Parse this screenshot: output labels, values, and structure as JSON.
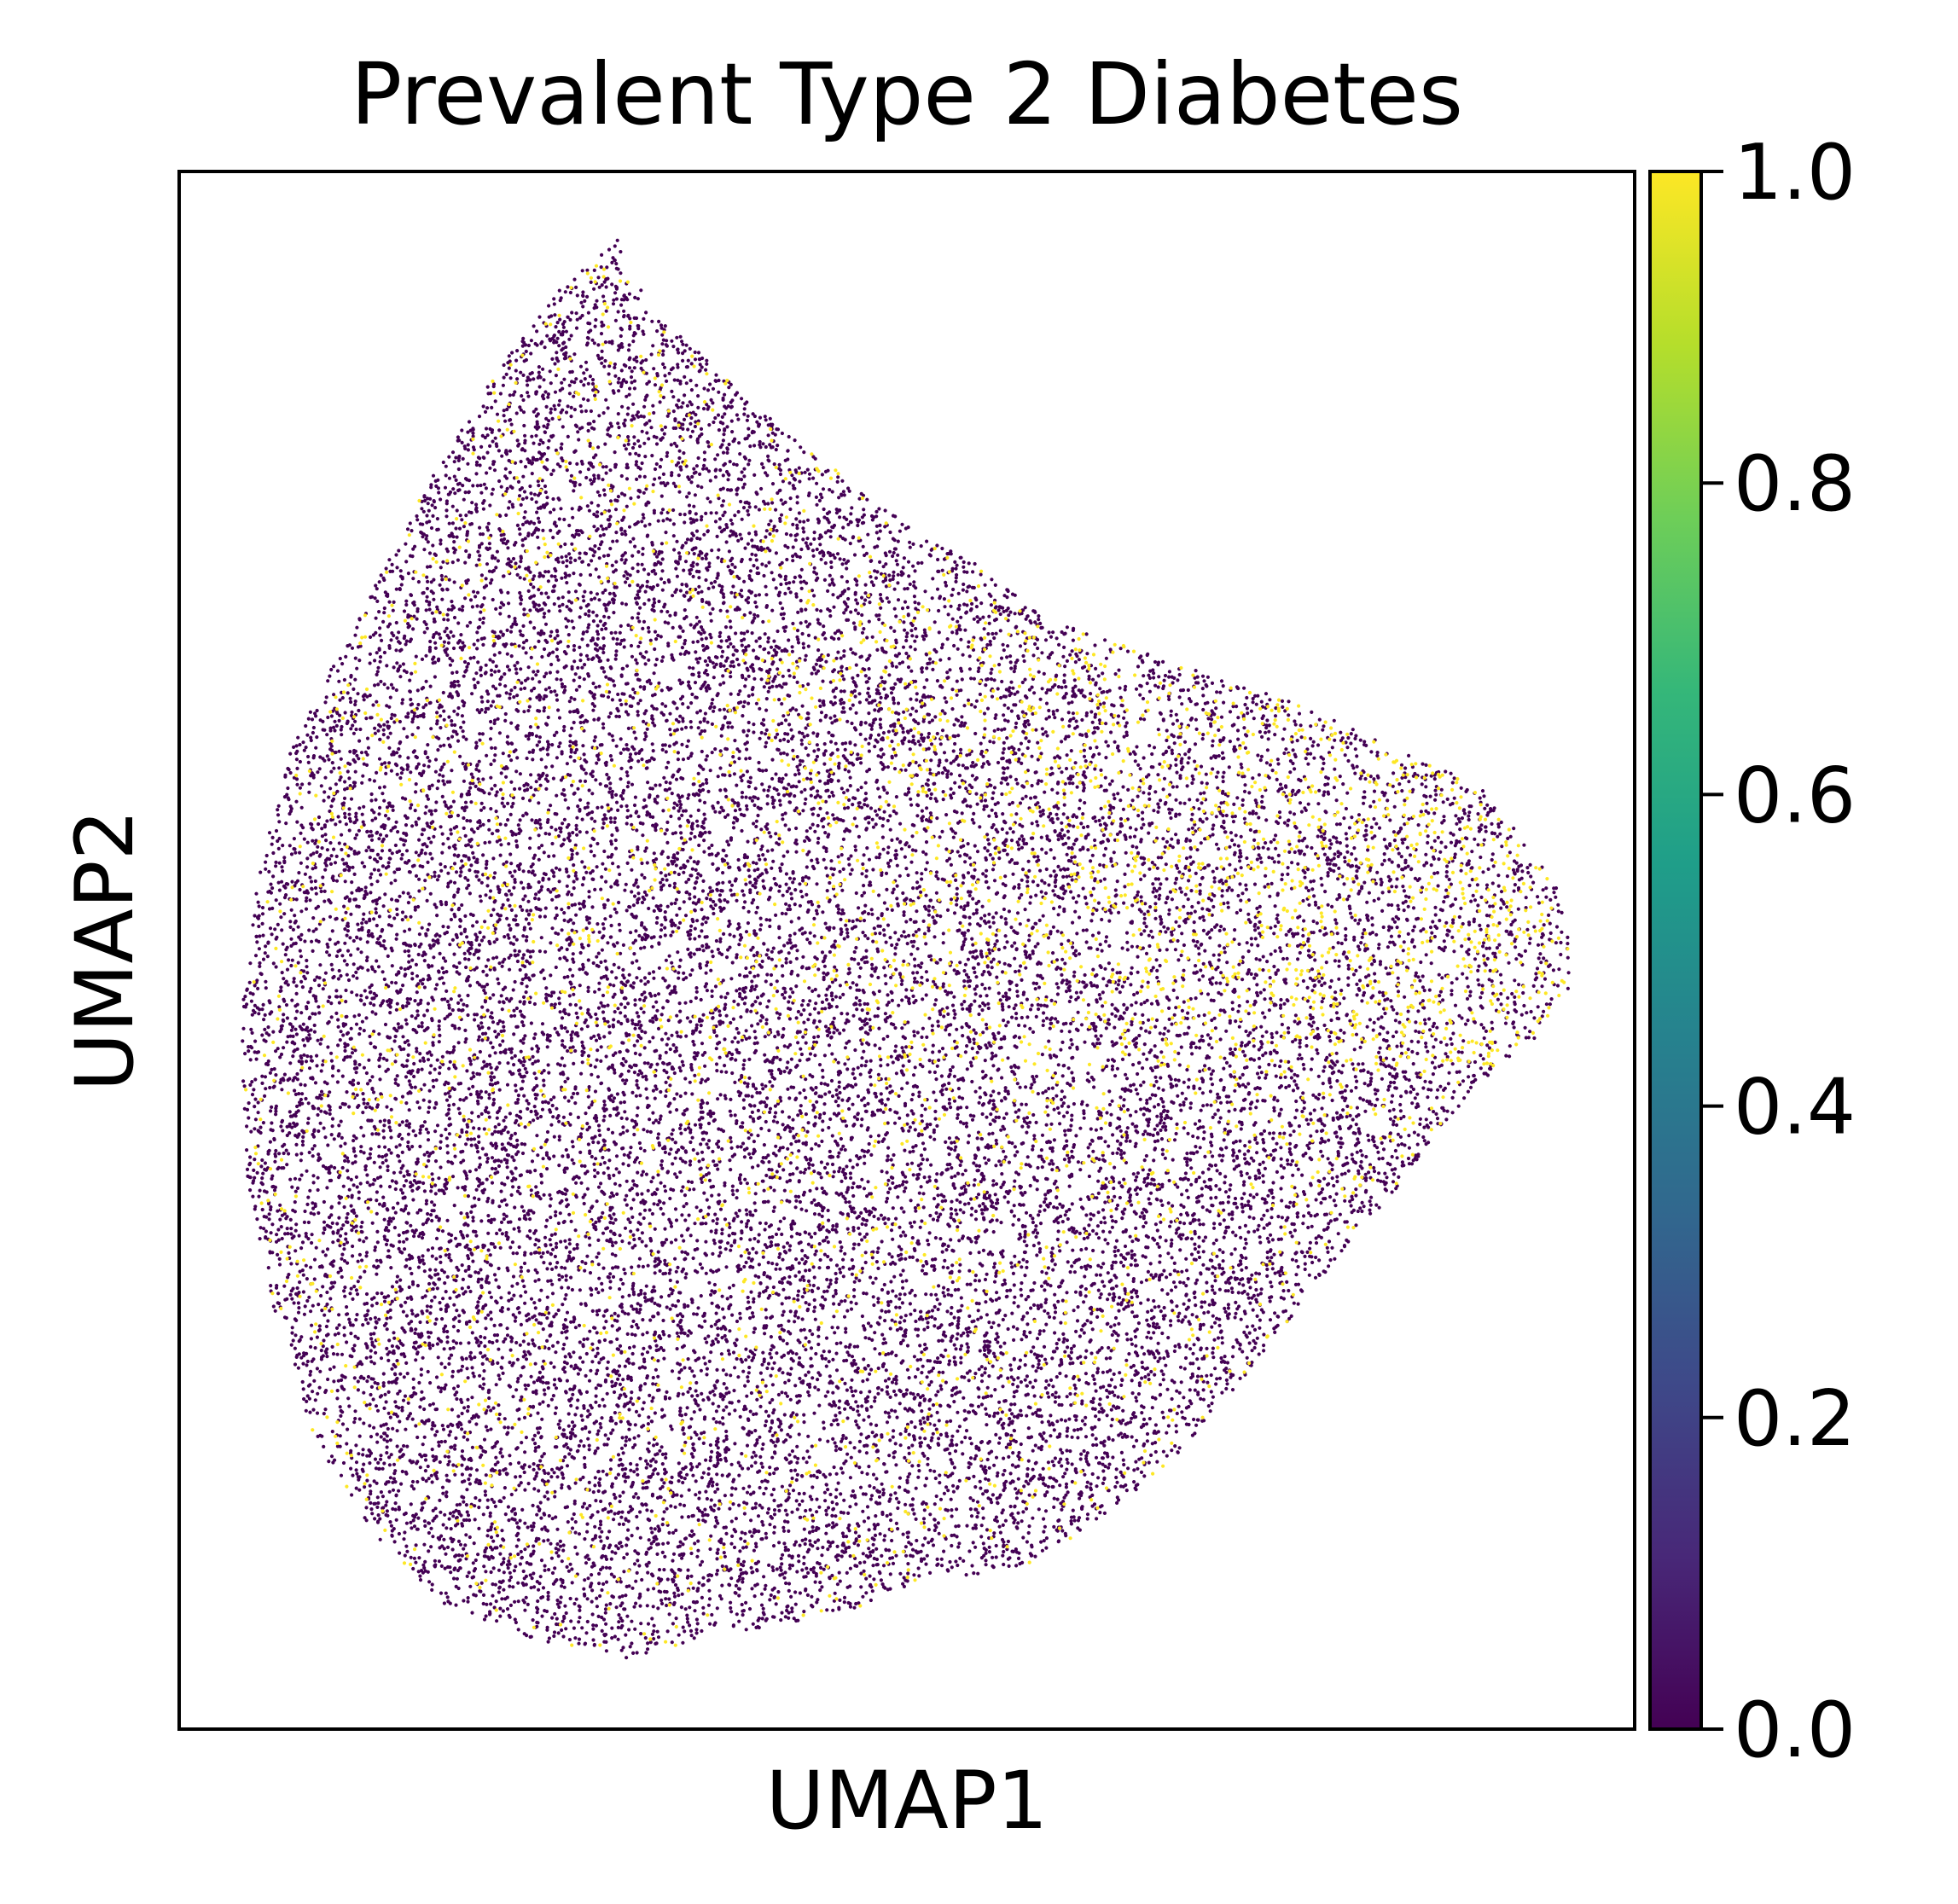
{
  "chart_data": {
    "type": "scatter",
    "title": "Prevalent Type 2 Diabetes",
    "xlabel": "UMAP1",
    "ylabel": "UMAP2",
    "x_ticks": [],
    "y_ticks": [],
    "colormap": "viridis",
    "colorbar": {
      "range": [
        0.0,
        1.0
      ],
      "ticks": [
        0.0,
        0.2,
        0.4,
        0.6,
        0.8,
        1.0
      ],
      "tick_labels": [
        "0.0",
        "0.2",
        "0.4",
        "0.6",
        "0.8",
        "1.0"
      ],
      "stops": [
        "#440154",
        "#482878",
        "#3e4989",
        "#31688e",
        "#26828e",
        "#1f9e89",
        "#35b779",
        "#6ece58",
        "#b5de2b",
        "#fde725"
      ]
    },
    "series": [
      {
        "value": 0,
        "color": "#440154"
      },
      {
        "value": 1,
        "color": "#fde725"
      }
    ],
    "grid": false
  }
}
